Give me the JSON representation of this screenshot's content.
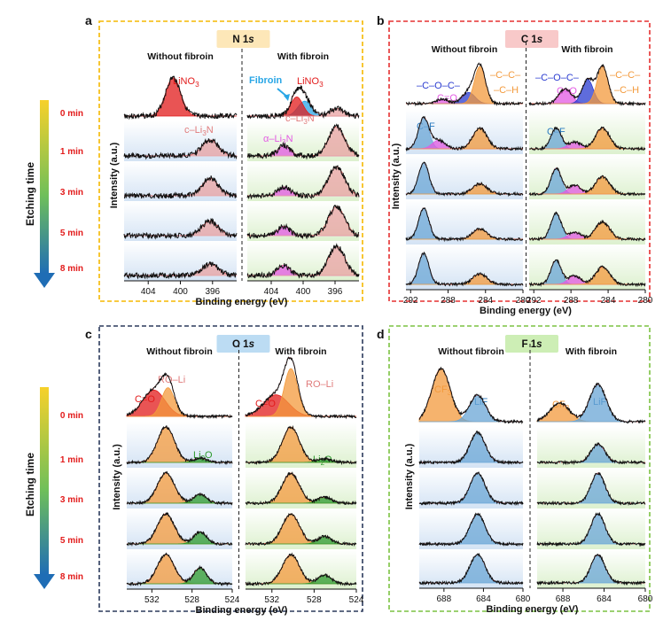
{
  "colors": {
    "n_border": "#f5b800",
    "c_border": "#e53030",
    "o_border": "#2b3a5c",
    "f_border": "#7cc242",
    "n_badge": "#fde7b8",
    "c_badge": "#f8c9c9",
    "o_badge": "#bcdcf3",
    "f_badge": "#cdeeb5",
    "salmon": "#e8a1a1",
    "orange": "#f39a3c",
    "blue": "#6aa6d6",
    "magenta": "#e35ae3",
    "red": "#e21b1b",
    "darkblue": "#2a3bd0",
    "green": "#2e9a2e",
    "cyan": "#29a6e6"
  },
  "etching": {
    "title": "Etching time",
    "times": [
      "0 min",
      "1 min",
      "3 min",
      "5 min",
      "8 min"
    ]
  },
  "chart_data": [
    {
      "panel": "a",
      "title": "N 1s",
      "type": "line",
      "xlabel": "Binding energy (eV)",
      "ylabel": "Intensity (a.u.)",
      "xlim": [
        407,
        393
      ],
      "xticks": [
        404,
        400,
        396
      ],
      "series_labels": [
        "Without fibroin",
        "With fibroin"
      ],
      "annotations": [
        "LiNO3",
        "c–Li3N",
        "Fibroin",
        "LiNO3",
        "c–Li3N",
        "α–Li3N"
      ],
      "peaks": {
        "without": [
          [
            {
              "center": 400.9,
              "height": 0.9,
              "fwhm": 2.2,
              "color": "red"
            }
          ],
          [
            {
              "center": 396.3,
              "height": 0.55,
              "fwhm": 2.4,
              "color": "salmon"
            }
          ],
          [
            {
              "center": 396.3,
              "height": 0.6,
              "fwhm": 2.4,
              "color": "salmon"
            }
          ],
          [
            {
              "center": 396.3,
              "height": 0.5,
              "fwhm": 2.4,
              "color": "salmon"
            }
          ],
          [
            {
              "center": 396.3,
              "height": 0.4,
              "fwhm": 2.4,
              "color": "salmon"
            }
          ]
        ],
        "with": [
          [
            {
              "center": 399.8,
              "height": 0.35,
              "fwhm": 2.0,
              "color": "cyan"
            },
            {
              "center": 400.8,
              "height": 0.45,
              "fwhm": 1.8,
              "color": "red"
            },
            {
              "center": 395.8,
              "height": 0.18,
              "fwhm": 2.0,
              "color": "salmon"
            }
          ],
          [
            {
              "center": 402.4,
              "height": 0.35,
              "fwhm": 1.8,
              "color": "magenta"
            },
            {
              "center": 395.8,
              "height": 1.0,
              "fwhm": 2.4,
              "color": "salmon"
            }
          ],
          [
            {
              "center": 402.4,
              "height": 0.3,
              "fwhm": 1.8,
              "color": "magenta"
            },
            {
              "center": 395.8,
              "height": 1.0,
              "fwhm": 2.4,
              "color": "salmon"
            }
          ],
          [
            {
              "center": 402.4,
              "height": 0.32,
              "fwhm": 1.8,
              "color": "magenta"
            },
            {
              "center": 395.8,
              "height": 1.0,
              "fwhm": 2.4,
              "color": "salmon"
            }
          ],
          [
            {
              "center": 402.4,
              "height": 0.35,
              "fwhm": 1.8,
              "color": "magenta"
            },
            {
              "center": 395.8,
              "height": 1.0,
              "fwhm": 2.4,
              "color": "salmon"
            }
          ]
        ]
      }
    },
    {
      "panel": "b",
      "title": "C 1s",
      "type": "line",
      "xlabel": "Binding energy (eV)",
      "ylabel": "Intensity (a.u.)",
      "xlim": [
        292.5,
        280
      ],
      "xticks_left": [
        292,
        288,
        284,
        280
      ],
      "xticks_right": [
        292,
        288,
        284,
        280
      ],
      "series_labels": [
        "Without fibroin",
        "With fibroin"
      ],
      "annotations": [
        "–C–O–C–",
        "C=O",
        "–C–C–",
        "–C–H",
        "C–F",
        "–C–O–C–",
        "C=O",
        "–C–C–",
        "–C–H",
        "C–F"
      ],
      "peaks": {
        "without": [
          [
            {
              "center": 288.6,
              "height": 0.12,
              "fwhm": 1.6,
              "color": "magenta"
            },
            {
              "center": 285.8,
              "height": 0.3,
              "fwhm": 1.6,
              "color": "darkblue"
            },
            {
              "center": 284.6,
              "height": 1.0,
              "fwhm": 1.4,
              "color": "orange"
            }
          ],
          [
            {
              "center": 290.6,
              "height": 0.9,
              "fwhm": 1.3,
              "color": "blue"
            },
            {
              "center": 289.0,
              "height": 0.25,
              "fwhm": 1.6,
              "color": "magenta"
            },
            {
              "center": 284.6,
              "height": 0.6,
              "fwhm": 1.8,
              "color": "orange"
            }
          ],
          [
            {
              "center": 290.6,
              "height": 0.9,
              "fwhm": 1.3,
              "color": "blue"
            },
            {
              "center": 284.6,
              "height": 0.3,
              "fwhm": 1.8,
              "color": "orange"
            }
          ],
          [
            {
              "center": 290.6,
              "height": 0.9,
              "fwhm": 1.3,
              "color": "blue"
            },
            {
              "center": 284.6,
              "height": 0.3,
              "fwhm": 1.8,
              "color": "orange"
            }
          ],
          [
            {
              "center": 290.6,
              "height": 0.9,
              "fwhm": 1.3,
              "color": "blue"
            },
            {
              "center": 284.6,
              "height": 0.3,
              "fwhm": 1.8,
              "color": "orange"
            }
          ]
        ],
        "with": [
          [
            {
              "center": 288.6,
              "height": 0.4,
              "fwhm": 1.6,
              "color": "magenta"
            },
            {
              "center": 286.2,
              "height": 0.65,
              "fwhm": 1.4,
              "color": "darkblue"
            },
            {
              "center": 284.6,
              "height": 1.0,
              "fwhm": 1.4,
              "color": "orange"
            }
          ],
          [
            {
              "center": 289.6,
              "height": 0.6,
              "fwhm": 1.3,
              "color": "blue"
            },
            {
              "center": 287.6,
              "height": 0.2,
              "fwhm": 1.6,
              "color": "magenta"
            },
            {
              "center": 284.6,
              "height": 0.6,
              "fwhm": 1.8,
              "color": "orange"
            }
          ],
          [
            {
              "center": 289.6,
              "height": 0.75,
              "fwhm": 1.3,
              "color": "blue"
            },
            {
              "center": 287.6,
              "height": 0.25,
              "fwhm": 1.6,
              "color": "magenta"
            },
            {
              "center": 284.6,
              "height": 0.5,
              "fwhm": 1.8,
              "color": "orange"
            }
          ],
          [
            {
              "center": 289.6,
              "height": 0.75,
              "fwhm": 1.3,
              "color": "blue"
            },
            {
              "center": 287.6,
              "height": 0.2,
              "fwhm": 1.6,
              "color": "magenta"
            },
            {
              "center": 284.6,
              "height": 0.5,
              "fwhm": 1.8,
              "color": "orange"
            }
          ],
          [
            {
              "center": 289.6,
              "height": 0.7,
              "fwhm": 1.3,
              "color": "blue"
            },
            {
              "center": 287.6,
              "height": 0.25,
              "fwhm": 1.6,
              "color": "magenta"
            },
            {
              "center": 284.6,
              "height": 0.5,
              "fwhm": 1.8,
              "color": "orange"
            }
          ]
        ]
      }
    },
    {
      "panel": "c",
      "title": "O 1s",
      "type": "line",
      "xlabel": "Binding energy (eV)",
      "ylabel": "Intensity (a.u.)",
      "xlim": [
        534.5,
        524
      ],
      "xticks": [
        532,
        528,
        524
      ],
      "series_labels": [
        "Without fibroin",
        "With fibroin"
      ],
      "annotations": [
        "C=O",
        "RO–Li",
        "Li2O",
        "C=O",
        "RO–Li",
        "Li2O"
      ],
      "peaks": {
        "without": [
          [
            {
              "center": 531.8,
              "height": 0.55,
              "fwhm": 2.6,
              "color": "red"
            },
            {
              "center": 530.4,
              "height": 0.6,
              "fwhm": 1.5,
              "color": "orange"
            }
          ],
          [
            {
              "center": 530.6,
              "height": 1.0,
              "fwhm": 2.0,
              "color": "orange"
            },
            {
              "center": 527.2,
              "height": 0.12,
              "fwhm": 1.5,
              "color": "green"
            }
          ],
          [
            {
              "center": 530.6,
              "height": 1.0,
              "fwhm": 2.0,
              "color": "orange"
            },
            {
              "center": 527.2,
              "height": 0.3,
              "fwhm": 1.5,
              "color": "green"
            }
          ],
          [
            {
              "center": 530.6,
              "height": 1.0,
              "fwhm": 2.0,
              "color": "orange"
            },
            {
              "center": 527.2,
              "height": 0.4,
              "fwhm": 1.5,
              "color": "green"
            }
          ],
          [
            {
              "center": 530.6,
              "height": 1.0,
              "fwhm": 2.0,
              "color": "orange"
            },
            {
              "center": 527.2,
              "height": 0.55,
              "fwhm": 1.5,
              "color": "green"
            }
          ]
        ],
        "with": [
          [
            {
              "center": 531.6,
              "height": 0.45,
              "fwhm": 2.8,
              "color": "red"
            },
            {
              "center": 530.2,
              "height": 1.0,
              "fwhm": 1.5,
              "color": "orange"
            }
          ],
          [
            {
              "center": 530.2,
              "height": 1.0,
              "fwhm": 1.9,
              "color": "orange"
            },
            {
              "center": 527.0,
              "height": 0.1,
              "fwhm": 1.5,
              "color": "green"
            }
          ],
          [
            {
              "center": 530.2,
              "height": 1.0,
              "fwhm": 1.9,
              "color": "orange"
            },
            {
              "center": 527.0,
              "height": 0.2,
              "fwhm": 1.5,
              "color": "green"
            }
          ],
          [
            {
              "center": 530.2,
              "height": 1.0,
              "fwhm": 1.9,
              "color": "orange"
            },
            {
              "center": 527.0,
              "height": 0.25,
              "fwhm": 1.5,
              "color": "green"
            }
          ],
          [
            {
              "center": 530.2,
              "height": 1.0,
              "fwhm": 1.9,
              "color": "orange"
            },
            {
              "center": 527.0,
              "height": 0.3,
              "fwhm": 1.5,
              "color": "green"
            }
          ]
        ]
      }
    },
    {
      "panel": "d",
      "title": "F 1s",
      "type": "line",
      "xlabel": "Binding energy (eV)",
      "ylabel": "Intensity (a.u.)",
      "xlim": [
        690.5,
        680
      ],
      "xticks": [
        688,
        684,
        680
      ],
      "series_labels": [
        "Without fibroin",
        "With fibroin"
      ],
      "annotations": [
        "CF3",
        "LiF",
        "CF3",
        "LiF"
      ],
      "peaks": {
        "without": [
          [
            {
              "center": 688.3,
              "height": 1.0,
              "fwhm": 2.2,
              "color": "orange"
            },
            {
              "center": 684.6,
              "height": 0.5,
              "fwhm": 1.9,
              "color": "blue"
            }
          ],
          [
            {
              "center": 684.6,
              "height": 1.0,
              "fwhm": 1.8,
              "color": "blue"
            }
          ],
          [
            {
              "center": 684.6,
              "height": 1.0,
              "fwhm": 1.8,
              "color": "blue"
            }
          ],
          [
            {
              "center": 684.6,
              "height": 1.0,
              "fwhm": 1.8,
              "color": "blue"
            }
          ],
          [
            {
              "center": 684.6,
              "height": 1.0,
              "fwhm": 1.8,
              "color": "blue"
            }
          ]
        ],
        "with": [
          [
            {
              "center": 688.3,
              "height": 0.35,
              "fwhm": 2.2,
              "color": "orange"
            },
            {
              "center": 684.6,
              "height": 0.7,
              "fwhm": 1.9,
              "color": "blue"
            }
          ],
          [
            {
              "center": 684.6,
              "height": 0.6,
              "fwhm": 1.6,
              "color": "blue"
            }
          ],
          [
            {
              "center": 684.6,
              "height": 1.0,
              "fwhm": 1.6,
              "color": "blue"
            }
          ],
          [
            {
              "center": 684.6,
              "height": 1.0,
              "fwhm": 1.6,
              "color": "blue"
            }
          ],
          [
            {
              "center": 684.6,
              "height": 1.0,
              "fwhm": 1.6,
              "color": "blue"
            }
          ]
        ]
      }
    }
  ],
  "text": {
    "panel_letters": [
      "a",
      "b",
      "c",
      "d"
    ],
    "titles": {
      "n_el": "N 1",
      "c_el": "C 1",
      "o_el": "O 1",
      "f_el": "F 1",
      "orbital": "s"
    },
    "without": "Without fibroin",
    "with": "With fibroin",
    "intensity": "Intensity (a.u.)",
    "binding": "Binding energy (eV)",
    "n": {
      "lino3": "LiNO",
      "sub3": "3",
      "cli3n": "c–Li",
      "aLi3n": "α–Li",
      "n_suffix": "N",
      "fibroin": "Fibroin"
    },
    "c": {
      "coc": "–C–O–C–",
      "co": "C=O",
      "cc": "–C–C–",
      "ch": "–C–H",
      "cf": "C–F"
    },
    "o": {
      "co": "C=O",
      "roli": "RO–Li",
      "li2o_a": "Li",
      "li2o_b": "2",
      "li2o_c": "O"
    },
    "f": {
      "cf3_a": "CF",
      "cf3_b": "3",
      "lif": "LiF"
    }
  }
}
